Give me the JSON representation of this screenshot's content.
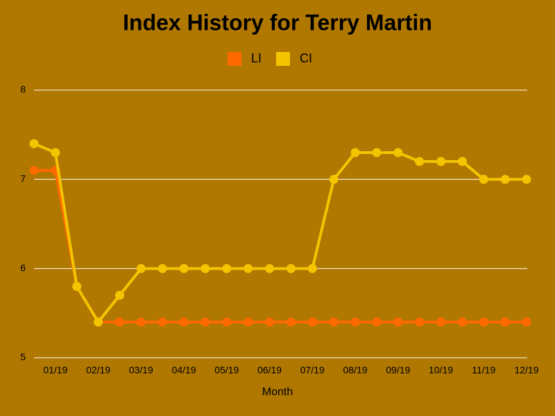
{
  "chart_data": {
    "type": "line",
    "title": "Index History for Terry Martin",
    "x_label": "Month",
    "categories": [
      null,
      "01/19",
      null,
      "02/19",
      null,
      "03/19",
      null,
      "04/19",
      null,
      "05/19",
      null,
      "06/19",
      null,
      "07/19",
      null,
      "08/19",
      null,
      "09/19",
      null,
      "10/19",
      null,
      "11/19",
      null,
      "12/19"
    ],
    "series": [
      {
        "name": "LI",
        "color": "#ff6a00",
        "values": [
          7.1,
          7.1,
          5.8,
          5.4,
          5.4,
          5.4,
          5.4,
          5.4,
          5.4,
          5.4,
          5.4,
          5.4,
          5.4,
          5.4,
          5.4,
          5.4,
          5.4,
          5.4,
          5.4,
          5.4,
          5.4,
          5.4,
          5.4,
          5.4
        ]
      },
      {
        "name": "CI",
        "color": "#f5c400",
        "values": [
          7.4,
          7.3,
          5.8,
          5.4,
          5.7,
          6,
          6,
          6,
          6,
          6,
          6,
          6,
          6,
          6,
          7.0,
          7.3,
          7.3,
          7.3,
          7.2,
          7.2,
          7.2,
          7.0,
          7.0,
          7.0
        ]
      }
    ],
    "ylim": [
      5,
      8
    ],
    "yticks": [
      5,
      6,
      7,
      8
    ],
    "grid": true
  }
}
